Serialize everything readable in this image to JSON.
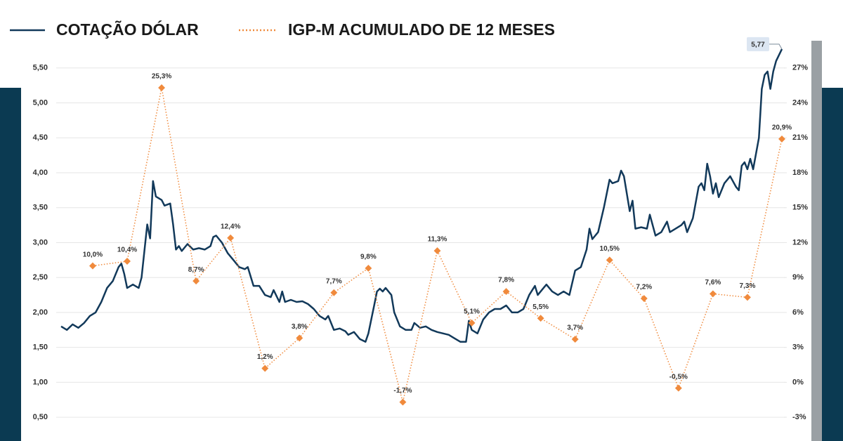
{
  "chart_data": {
    "type": "line",
    "xlim": [
      0,
      251
    ],
    "ylim": [
      0.2,
      5.9
    ],
    "yticks": [
      {
        "value": 0.5,
        "label": "0,50"
      },
      {
        "value": 1,
        "label": "1,00"
      },
      {
        "value": 1.5,
        "label": "1,50"
      },
      {
        "value": 2,
        "label": "2,00"
      },
      {
        "value": 2.5,
        "label": "2,50"
      },
      {
        "value": 3,
        "label": "3,00"
      },
      {
        "value": 3.5,
        "label": "3,50"
      },
      {
        "value": 4,
        "label": "4,00"
      },
      {
        "value": 4.5,
        "label": "4,50"
      },
      {
        "value": 5,
        "label": "5,00"
      },
      {
        "value": 5.5,
        "label": "5,50"
      }
    ],
    "y2lim": [
      -4.8,
      29.4
    ],
    "y2ticks": [
      {
        "value": -3,
        "label": "-3%"
      },
      {
        "value": 0,
        "label": "0%"
      },
      {
        "value": 3,
        "label": "3%"
      },
      {
        "value": 6,
        "label": "6%"
      },
      {
        "value": 9,
        "label": "9%"
      },
      {
        "value": 12,
        "label": "12%"
      },
      {
        "value": 15,
        "label": "15%"
      },
      {
        "value": 18,
        "label": "18%"
      },
      {
        "value": 21,
        "label": "21%"
      },
      {
        "value": 24,
        "label": "24%"
      },
      {
        "value": 27,
        "label": "27%"
      }
    ],
    "grid": true,
    "legend": "top-left",
    "series": [
      {
        "name": "COTAÇÃO DÓLAR",
        "color": "#12395a",
        "axis": "y",
        "style": "solid",
        "x": [
          0,
          2,
          4,
          6,
          8,
          10,
          12,
          14,
          16,
          18,
          20,
          21,
          22,
          23,
          25,
          27,
          28,
          30,
          31,
          32,
          33,
          35,
          36,
          38,
          39,
          40,
          41,
          42,
          44,
          46,
          48,
          50,
          52,
          53,
          54,
          56,
          58,
          60,
          62,
          64,
          65,
          67,
          69,
          71,
          73,
          74,
          76,
          77,
          78,
          80,
          82,
          84,
          86,
          88,
          90,
          92,
          93,
          95,
          97,
          99,
          100,
          102,
          104,
          106,
          107,
          109,
          110,
          111,
          112,
          113,
          115,
          116,
          118,
          120,
          122,
          123,
          125,
          127,
          129,
          131,
          133,
          135,
          137,
          139,
          141,
          142,
          143,
          145,
          147,
          149,
          151,
          153,
          155,
          157,
          159,
          161,
          163,
          165,
          166,
          168,
          169,
          171,
          173,
          175,
          177,
          179,
          181,
          183,
          184,
          185,
          187,
          189,
          191,
          192,
          194,
          195,
          196,
          198,
          199,
          200,
          202,
          204,
          205,
          207,
          209,
          211,
          212,
          214,
          216,
          217,
          218,
          220,
          222,
          223,
          224,
          225,
          226,
          227,
          228,
          229,
          231,
          233,
          235,
          236,
          237,
          238,
          239,
          240,
          241,
          243,
          244,
          245,
          246,
          247,
          248,
          249,
          251
        ],
        "values": [
          1.8,
          1.75,
          1.83,
          1.78,
          1.85,
          1.95,
          2.0,
          2.15,
          2.35,
          2.45,
          2.65,
          2.7,
          2.55,
          2.35,
          2.4,
          2.35,
          2.5,
          3.26,
          3.06,
          3.88,
          3.66,
          3.61,
          3.53,
          3.56,
          3.26,
          2.9,
          2.95,
          2.88,
          2.98,
          2.9,
          2.92,
          2.9,
          2.95,
          3.08,
          3.1,
          3.0,
          2.85,
          2.75,
          2.65,
          2.62,
          2.65,
          2.38,
          2.38,
          2.25,
          2.22,
          2.32,
          2.15,
          2.3,
          2.15,
          2.18,
          2.15,
          2.16,
          2.12,
          2.05,
          1.95,
          1.9,
          1.95,
          1.75,
          1.77,
          1.73,
          1.68,
          1.72,
          1.62,
          1.58,
          1.7,
          2.1,
          2.3,
          2.34,
          2.3,
          2.35,
          2.25,
          2.0,
          1.8,
          1.75,
          1.75,
          1.85,
          1.78,
          1.8,
          1.75,
          1.72,
          1.7,
          1.68,
          1.63,
          1.58,
          1.58,
          1.88,
          1.75,
          1.7,
          1.9,
          2.0,
          2.05,
          2.05,
          2.1,
          2.0,
          2.0,
          2.05,
          2.25,
          2.38,
          2.25,
          2.35,
          2.4,
          2.3,
          2.25,
          2.3,
          2.25,
          2.6,
          2.65,
          2.9,
          3.2,
          3.05,
          3.15,
          3.5,
          3.9,
          3.85,
          3.88,
          4.03,
          3.95,
          3.45,
          3.6,
          3.2,
          3.22,
          3.2,
          3.4,
          3.1,
          3.15,
          3.3,
          3.15,
          3.2,
          3.25,
          3.3,
          3.15,
          3.35,
          3.8,
          3.85,
          3.75,
          4.13,
          3.95,
          3.7,
          3.85,
          3.65,
          3.85,
          3.95,
          3.8,
          3.75,
          4.1,
          4.15,
          4.05,
          4.2,
          4.05,
          4.5,
          5.2,
          5.4,
          5.45,
          5.2,
          5.45,
          5.6,
          5.77
        ],
        "last_label": "5,77"
      },
      {
        "name": "IGP-M ACUMULADO DE 12 MESES",
        "color": "#f08a3c",
        "axis": "y2",
        "style": "dotted",
        "x": [
          11,
          23,
          35,
          47,
          59,
          71,
          83,
          95,
          107,
          119,
          131,
          143,
          155,
          167,
          179,
          191,
          203,
          215,
          227,
          239,
          251
        ],
        "values": [
          10.0,
          10.4,
          25.3,
          8.7,
          12.4,
          1.2,
          3.8,
          7.7,
          9.8,
          -1.7,
          11.3,
          5.1,
          7.8,
          5.5,
          3.7,
          10.5,
          7.2,
          -0.5,
          7.6,
          7.3,
          20.9
        ],
        "value_labels": [
          "10,0%",
          "10,4%",
          "25,3%",
          "8,7%",
          "12,4%",
          "1,2%",
          "3,8%",
          "7,7%",
          "9,8%",
          "-1,7%",
          "11,3%",
          "5,1%",
          "7,8%",
          "5,5%",
          "3,7%",
          "10,5%",
          "7,2%",
          "-0,5%",
          "7,6%",
          "7,3%",
          "20,9%"
        ]
      }
    ]
  }
}
